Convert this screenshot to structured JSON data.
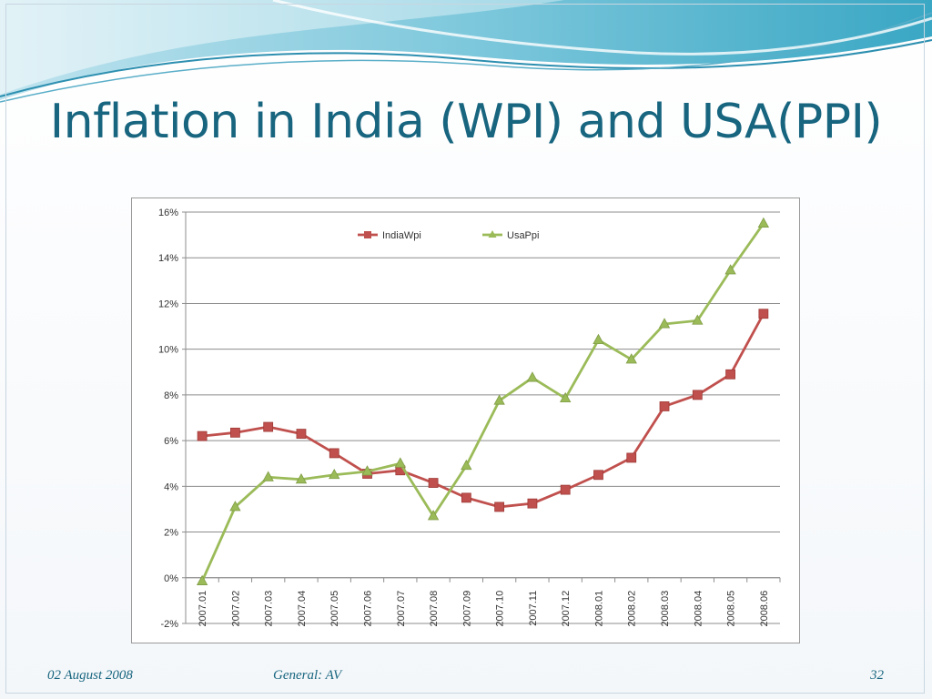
{
  "slide": {
    "title": "Inflation in India (WPI) and USA(PPI)",
    "footer_date": "02 August 2008",
    "footer_center": "General: AV",
    "page_number": "32"
  },
  "colors": {
    "title": "#17657f",
    "india": "#c0504d",
    "usa": "#9bbb59",
    "grid": "#8c8c8c"
  },
  "chart_data": {
    "type": "line",
    "title": "",
    "xlabel": "",
    "ylabel": "",
    "categories": [
      "2007.01",
      "2007.02",
      "2007.03",
      "2007.04",
      "2007.05",
      "2007.06",
      "2007.07",
      "2007.08",
      "2007.09",
      "2007.10",
      "2007.11",
      "2007.12",
      "2008.01",
      "2008.02",
      "2008.03",
      "2008.04",
      "2008.05",
      "2008.06"
    ],
    "ylim": [
      -2,
      16
    ],
    "yticks": [
      "-2%",
      "0%",
      "2%",
      "4%",
      "6%",
      "8%",
      "10%",
      "12%",
      "14%",
      "16%"
    ],
    "ytick_values": [
      -2,
      0,
      2,
      4,
      6,
      8,
      10,
      12,
      14,
      16
    ],
    "grid": true,
    "legend_position": "top-center",
    "series": [
      {
        "name": "IndiaWpi",
        "marker": "square",
        "color": "#c0504d",
        "values": [
          6.2,
          6.35,
          6.6,
          6.3,
          5.45,
          4.55,
          4.7,
          4.15,
          3.5,
          3.1,
          3.25,
          3.85,
          4.5,
          5.25,
          7.5,
          8.0,
          8.9,
          11.55
        ]
      },
      {
        "name": "UsaPpi",
        "marker": "triangle",
        "color": "#9bbb59",
        "values": [
          -0.15,
          3.1,
          4.4,
          4.3,
          4.5,
          4.65,
          5.0,
          2.7,
          4.9,
          7.75,
          8.75,
          7.85,
          10.4,
          9.55,
          11.1,
          11.25,
          13.45,
          15.5
        ]
      }
    ]
  }
}
